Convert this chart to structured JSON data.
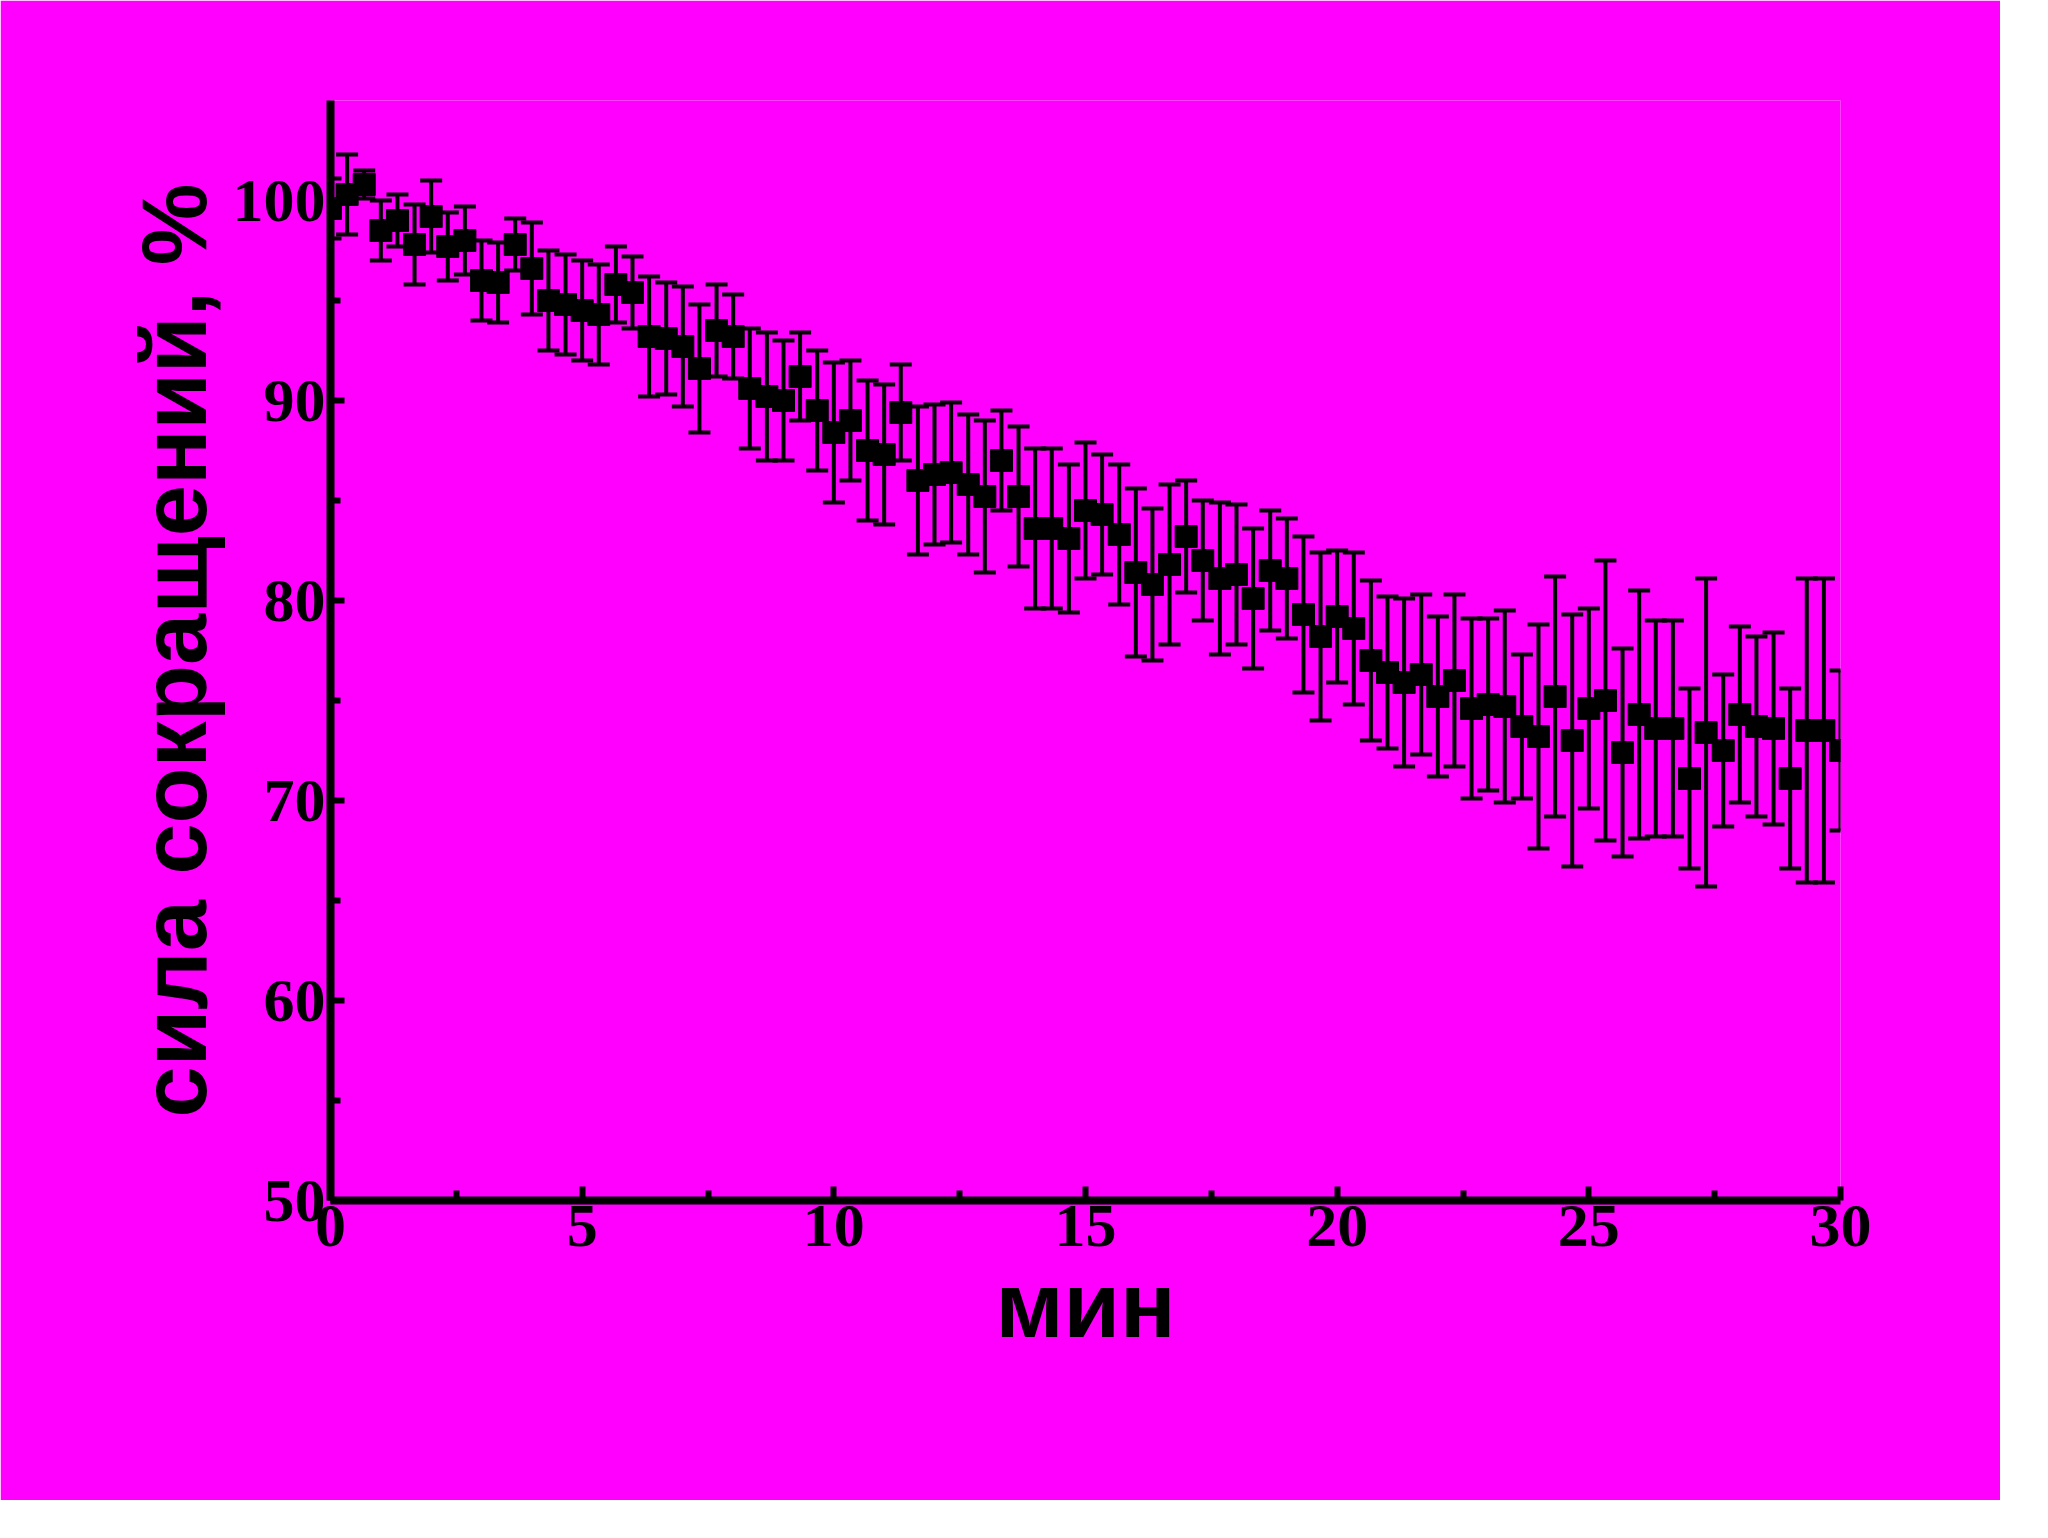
{
  "chart_data": {
    "type": "scatter",
    "xlabel": "мин",
    "ylabel": "сила сокращений, %",
    "marker": "square",
    "grid": false,
    "xlim": [
      0,
      30
    ],
    "xticks": [
      0,
      5,
      10,
      15,
      20,
      25,
      30
    ],
    "ylim": [
      50,
      105
    ],
    "yticks": [
      50,
      60,
      70,
      80,
      90,
      100
    ],
    "x": [
      0,
      0.33,
      0.67,
      1,
      1.33,
      1.67,
      2,
      2.33,
      2.67,
      3,
      3.33,
      3.67,
      4,
      4.33,
      4.67,
      5,
      5.33,
      5.67,
      6,
      6.33,
      6.67,
      7,
      7.33,
      7.67,
      8,
      8.33,
      8.67,
      9,
      9.33,
      9.67,
      10,
      10.33,
      10.67,
      11,
      11.33,
      11.67,
      12,
      12.33,
      12.67,
      13,
      13.33,
      13.67,
      14,
      14.33,
      14.67,
      15,
      15.33,
      15.67,
      16,
      16.33,
      16.67,
      17,
      17.33,
      17.67,
      18,
      18.33,
      18.67,
      19,
      19.33,
      19.67,
      20,
      20.33,
      20.67,
      21,
      21.33,
      21.67,
      22,
      22.33,
      22.67,
      23,
      23.33,
      23.67,
      24,
      24.33,
      24.67,
      25,
      25.33,
      25.67,
      26,
      26.33,
      26.67,
      27,
      27.33,
      27.67,
      28,
      28.33,
      28.67,
      29,
      29.33,
      29.67,
      30
    ],
    "series": [
      {
        "color": "#000000",
        "values": [
          99.6,
          100.3,
          100.8,
          98.5,
          99,
          97.8,
          99.2,
          97.7,
          98,
          96,
          95.9,
          97.8,
          96.6,
          95,
          94.8,
          94.5,
          94.3,
          95.8,
          95.4,
          93.2,
          93.1,
          92.7,
          91.6,
          93.5,
          93.2,
          90.6,
          90.2,
          90,
          91.2,
          89.5,
          88.4,
          89,
          87.5,
          87.3,
          89.4,
          86,
          86.3,
          86.4,
          85.8,
          85.2,
          87,
          85.2,
          83.6,
          83.6,
          83.1,
          84.5,
          84.3,
          83.3,
          81.4,
          80.8,
          81.8,
          83.2,
          82,
          81.1,
          81.3,
          80.1,
          81.5,
          81.1,
          79.3,
          78.2,
          79.2,
          78.6,
          77,
          76.4,
          75.9,
          76.3,
          75.2,
          76,
          74.6,
          74.8,
          74.7,
          73.7,
          73.2,
          75.2,
          73,
          74.6,
          75,
          72.4,
          74.3,
          73.6,
          73.6,
          71.1,
          73.4,
          72.5,
          74.3,
          73.7,
          73.6,
          71.1,
          73.5,
          73.5,
          72.5
        ],
        "errors": [
          1.5,
          2,
          0.7,
          1.5,
          1.3,
          2,
          1.8,
          1.7,
          1.7,
          2,
          2,
          1.3,
          2.3,
          2.5,
          2.5,
          2.5,
          2.5,
          1.9,
          1.8,
          3,
          2.8,
          3,
          3.2,
          2.3,
          2.1,
          3,
          3.2,
          3,
          2.2,
          3,
          3.5,
          3,
          3.5,
          3.5,
          2.4,
          3.7,
          3.5,
          3.5,
          3.5,
          3.8,
          2.5,
          3.5,
          4,
          4,
          3.7,
          3.4,
          3,
          3.5,
          4.2,
          3.8,
          4,
          2.8,
          3,
          3.8,
          3.5,
          3.5,
          3,
          3,
          3.9,
          4.2,
          3.3,
          3.8,
          4,
          3.8,
          4.2,
          4,
          4,
          4.3,
          4.5,
          4.3,
          4.8,
          3.6,
          5.6,
          6,
          6.3,
          5,
          7,
          5.2,
          6.2,
          5.4,
          5.4,
          4.5,
          7.7,
          3.8,
          4.4,
          4.5,
          4.8,
          4.5,
          7.6,
          7.6,
          4
        ]
      }
    ]
  }
}
